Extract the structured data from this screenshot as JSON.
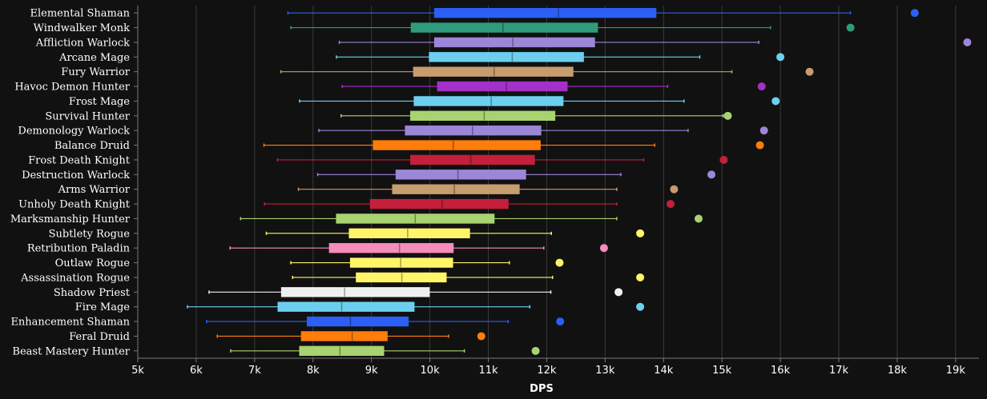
{
  "chart_data": {
    "type": "box",
    "orientation": "horizontal",
    "xlabel": "DPS",
    "xlim": [
      5000,
      19400
    ],
    "x_ticks": [
      5000,
      6000,
      7000,
      8000,
      9000,
      10000,
      11000,
      12000,
      13000,
      14000,
      15000,
      16000,
      17000,
      18000,
      19000
    ],
    "x_tick_labels": [
      "5k",
      "6k",
      "7k",
      "8k",
      "9k",
      "10k",
      "11k",
      "12k",
      "13k",
      "14k",
      "15k",
      "16k",
      "17k",
      "18k",
      "19k"
    ],
    "grid": true,
    "background": "#111111",
    "series": [
      {
        "name": "Elemental Shaman",
        "color": "#2b5ff5",
        "min": 7570,
        "q1": 10080,
        "median": 12200,
        "q3": 13870,
        "max": 17200,
        "outliers": [
          18300
        ]
      },
      {
        "name": "Windwalker Monk",
        "color": "#2e9b7c",
        "min": 7620,
        "q1": 9680,
        "median": 11250,
        "q3": 12870,
        "max": 15830,
        "outliers": [
          17200
        ]
      },
      {
        "name": "Affliction Warlock",
        "color": "#9b86d8",
        "min": 8450,
        "q1": 10080,
        "median": 11420,
        "q3": 12820,
        "max": 15630,
        "outliers": [
          19200
        ]
      },
      {
        "name": "Arcane Mage",
        "color": "#6dcff0",
        "min": 8400,
        "q1": 9990,
        "median": 11410,
        "q3": 12630,
        "max": 14620,
        "outliers": [
          16000
        ]
      },
      {
        "name": "Fury Warrior",
        "color": "#c79c6e",
        "min": 7450,
        "q1": 9720,
        "median": 11100,
        "q3": 12450,
        "max": 15170,
        "outliers": [
          16500
        ]
      },
      {
        "name": "Havoc Demon Hunter",
        "color": "#a330c9",
        "min": 8500,
        "q1": 10130,
        "median": 11310,
        "q3": 12350,
        "max": 14070,
        "outliers": [
          15680
        ]
      },
      {
        "name": "Frost Mage",
        "color": "#6dcff0",
        "min": 7770,
        "q1": 9730,
        "median": 11050,
        "q3": 12280,
        "max": 14350,
        "outliers": [
          15920
        ]
      },
      {
        "name": "Survival Hunter",
        "color": "#a9d271",
        "min": 8480,
        "q1": 9670,
        "median": 10930,
        "q3": 12140,
        "max": 15020,
        "outliers": [
          15100
        ]
      },
      {
        "name": "Demonology Warlock",
        "color": "#9b86d8",
        "min": 8100,
        "q1": 9580,
        "median": 10730,
        "q3": 11900,
        "max": 14420,
        "outliers": [
          15720
        ]
      },
      {
        "name": "Balance Druid",
        "color": "#ff7d0a",
        "min": 7160,
        "q1": 9030,
        "median": 10400,
        "q3": 11890,
        "max": 13850,
        "outliers": [
          15650
        ]
      },
      {
        "name": "Frost Death Knight",
        "color": "#c41f3b",
        "min": 7390,
        "q1": 9670,
        "median": 10700,
        "q3": 11790,
        "max": 13660,
        "outliers": [
          15030
        ]
      },
      {
        "name": "Destruction Warlock",
        "color": "#9b86d8",
        "min": 8080,
        "q1": 9420,
        "median": 10480,
        "q3": 11640,
        "max": 13270,
        "outliers": [
          14820
        ]
      },
      {
        "name": "Arms Warrior",
        "color": "#c79c6e",
        "min": 7750,
        "q1": 9360,
        "median": 10420,
        "q3": 11530,
        "max": 13200,
        "outliers": [
          14180
        ]
      },
      {
        "name": "Unholy Death Knight",
        "color": "#c41f3b",
        "min": 7170,
        "q1": 8980,
        "median": 10210,
        "q3": 11340,
        "max": 13200,
        "outliers": [
          14120
        ]
      },
      {
        "name": "Marksmanship Hunter",
        "color": "#a9d271",
        "min": 6760,
        "q1": 8400,
        "median": 9750,
        "q3": 11100,
        "max": 13200,
        "outliers": [
          14600
        ]
      },
      {
        "name": "Subtlety Rogue",
        "color": "#fff569",
        "min": 7200,
        "q1": 8620,
        "median": 9620,
        "q3": 10680,
        "max": 12080,
        "outliers": [
          13600
        ]
      },
      {
        "name": "Retribution Paladin",
        "color": "#f58cba",
        "min": 6580,
        "q1": 8280,
        "median": 9480,
        "q3": 10400,
        "max": 11950,
        "outliers": [
          12980
        ]
      },
      {
        "name": "Outlaw Rogue",
        "color": "#fff569",
        "min": 7620,
        "q1": 8640,
        "median": 9500,
        "q3": 10390,
        "max": 11360,
        "outliers": [
          12220
        ]
      },
      {
        "name": "Assassination Rogue",
        "color": "#fff569",
        "min": 7650,
        "q1": 8740,
        "median": 9520,
        "q3": 10280,
        "max": 12100,
        "outliers": [
          13600
        ]
      },
      {
        "name": "Shadow Priest",
        "color": "#f0f0f0",
        "min": 6220,
        "q1": 7460,
        "median": 8540,
        "q3": 9990,
        "max": 12070,
        "outliers": [
          13230
        ]
      },
      {
        "name": "Fire Mage",
        "color": "#6dcff0",
        "min": 5850,
        "q1": 7400,
        "median": 8490,
        "q3": 9730,
        "max": 11710,
        "outliers": [
          13600
        ]
      },
      {
        "name": "Enhancement Shaman",
        "color": "#2b5ff5",
        "min": 6180,
        "q1": 7900,
        "median": 8640,
        "q3": 9630,
        "max": 11340,
        "outliers": [
          12230
        ]
      },
      {
        "name": "Feral Druid",
        "color": "#ff7d0a",
        "min": 6360,
        "q1": 7800,
        "median": 8670,
        "q3": 9270,
        "max": 10320,
        "outliers": [
          10880
        ]
      },
      {
        "name": "Beast Mastery Hunter",
        "color": "#a9d271",
        "min": 6590,
        "q1": 7770,
        "median": 8460,
        "q3": 9210,
        "max": 10590,
        "outliers": [
          11810
        ]
      }
    ]
  }
}
